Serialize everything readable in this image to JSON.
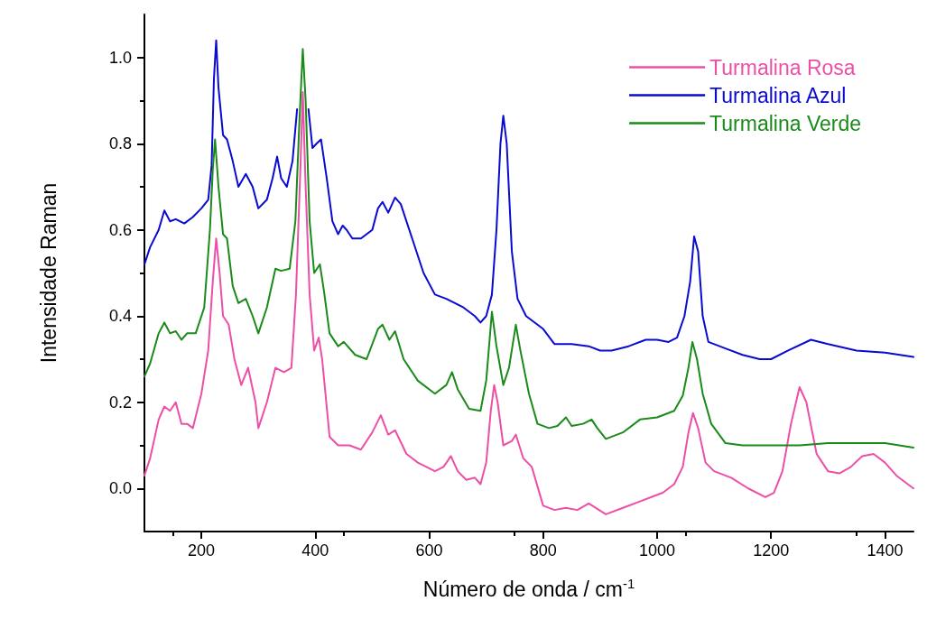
{
  "chart_data": {
    "type": "line",
    "xlabel": "Número de onda / cm$^{-1}$",
    "ylabel": "Intensidade Raman",
    "xlim": [
      100,
      1450
    ],
    "ylim": [
      -0.1,
      1.1
    ],
    "xticks": [
      200,
      400,
      600,
      800,
      1000,
      1200,
      1400
    ],
    "yticks": [
      {
        "value": 0,
        "label": "0.0"
      },
      {
        "value": 0.2,
        "label": "0.2"
      },
      {
        "value": 0.4,
        "label": "0.4"
      },
      {
        "value": 0.6,
        "label": "0.6"
      },
      {
        "value": 0.8,
        "label": "0.8"
      },
      {
        "value": 1,
        "label": "1.0"
      }
    ],
    "grid": false,
    "legend": "top right",
    "marker": "none",
    "line_style": "solid",
    "series": [
      {
        "name": "Turmalina Rosa",
        "color": "#ec4fa5",
        "x": [
          100,
          110,
          125,
          135,
          145,
          155,
          165,
          175,
          185,
          200,
          212,
          220,
          226,
          232,
          238,
          248,
          258,
          270,
          282,
          295,
          300,
          315,
          330,
          345,
          358,
          366,
          374,
          378,
          383,
          390,
          398,
          406,
          412,
          425,
          440,
          460,
          480,
          500,
          515,
          528,
          540,
          560,
          580,
          610,
          625,
          638,
          650,
          665,
          680,
          690,
          700,
          708,
          714,
          720,
          730,
          745,
          752,
          765,
          780,
          800,
          820,
          840,
          860,
          880,
          910,
          940,
          970,
          990,
          1010,
          1030,
          1045,
          1055,
          1063,
          1072,
          1085,
          1100,
          1130,
          1160,
          1190,
          1205,
          1220,
          1235,
          1250,
          1262,
          1280,
          1300,
          1320,
          1340,
          1360,
          1380,
          1400,
          1420,
          1450
        ],
        "values": [
          0.03,
          0.07,
          0.16,
          0.19,
          0.18,
          0.2,
          0.15,
          0.15,
          0.14,
          0.22,
          0.32,
          0.48,
          0.58,
          0.5,
          0.4,
          0.38,
          0.3,
          0.24,
          0.28,
          0.2,
          0.14,
          0.2,
          0.28,
          0.27,
          0.28,
          0.45,
          0.75,
          0.92,
          0.7,
          0.45,
          0.32,
          0.35,
          0.3,
          0.12,
          0.1,
          0.1,
          0.09,
          0.13,
          0.17,
          0.125,
          0.135,
          0.08,
          0.06,
          0.04,
          0.05,
          0.075,
          0.04,
          0.02,
          0.025,
          0.01,
          0.06,
          0.18,
          0.24,
          0.2,
          0.1,
          0.11,
          0.125,
          0.07,
          0.05,
          -0.04,
          -0.05,
          -0.045,
          -0.05,
          -0.035,
          -0.06,
          -0.045,
          -0.03,
          -0.02,
          -0.01,
          0.01,
          0.05,
          0.13,
          0.175,
          0.14,
          0.06,
          0.04,
          0.025,
          0,
          -0.02,
          -0.01,
          0.04,
          0.15,
          0.235,
          0.2,
          0.08,
          0.04,
          0.035,
          0.05,
          0.075,
          0.08,
          0.06,
          0.03,
          0
        ]
      },
      {
        "name": "Turmalina Azul",
        "color": "#0a0ad0",
        "x": [
          100,
          110,
          125,
          135,
          145,
          155,
          170,
          185,
          200,
          212,
          218,
          222,
          226,
          230,
          238,
          245,
          255,
          265,
          278,
          290,
          300,
          315,
          325,
          333,
          340,
          350,
          360,
          368,
          375,
          380,
          388,
          395,
          402,
          410,
          420,
          430,
          440,
          448,
          455,
          465,
          480,
          500,
          510,
          518,
          528,
          540,
          550,
          570,
          590,
          610,
          630,
          660,
          680,
          690,
          700,
          710,
          718,
          725,
          730,
          736,
          745,
          755,
          770,
          790,
          800,
          820,
          850,
          880,
          900,
          920,
          950,
          980,
          1000,
          1020,
          1035,
          1048,
          1058,
          1065,
          1072,
          1080,
          1090,
          1120,
          1150,
          1180,
          1200,
          1230,
          1270,
          1300,
          1350,
          1400,
          1450
        ],
        "values": [
          0.52,
          0.56,
          0.6,
          0.645,
          0.62,
          0.625,
          0.615,
          0.63,
          0.65,
          0.67,
          0.75,
          0.95,
          1.04,
          0.93,
          0.82,
          0.81,
          0.76,
          0.7,
          0.73,
          0.7,
          0.65,
          0.67,
          0.72,
          0.77,
          0.72,
          0.7,
          0.76,
          0.88,
          null,
          null,
          0.88,
          0.79,
          0.8,
          0.81,
          0.72,
          0.62,
          0.59,
          0.61,
          0.6,
          0.58,
          0.58,
          0.6,
          0.65,
          0.665,
          0.64,
          0.675,
          0.66,
          0.58,
          0.5,
          0.45,
          0.44,
          0.42,
          0.4,
          0.385,
          0.4,
          0.45,
          0.6,
          0.8,
          0.865,
          0.8,
          0.55,
          0.44,
          0.4,
          0.38,
          0.37,
          0.335,
          0.335,
          0.33,
          0.32,
          0.32,
          0.33,
          0.345,
          0.345,
          0.34,
          0.35,
          0.4,
          0.48,
          0.585,
          0.55,
          0.4,
          0.34,
          0.325,
          0.31,
          0.3,
          0.3,
          0.32,
          0.345,
          0.335,
          0.32,
          0.315,
          0.305
        ]
      },
      {
        "name": "Turmalina Verde",
        "color": "#1a8a1a",
        "x": [
          100,
          110,
          125,
          135,
          145,
          155,
          165,
          175,
          190,
          205,
          215,
          220,
          224,
          230,
          238,
          245,
          255,
          265,
          278,
          290,
          300,
          315,
          330,
          340,
          355,
          365,
          372,
          378,
          383,
          390,
          398,
          408,
          415,
          425,
          440,
          450,
          470,
          490,
          510,
          518,
          530,
          540,
          555,
          580,
          610,
          630,
          640,
          650,
          670,
          690,
          700,
          710,
          718,
          730,
          740,
          752,
          760,
          775,
          790,
          810,
          825,
          840,
          850,
          870,
          885,
          895,
          910,
          940,
          970,
          1000,
          1030,
          1045,
          1055,
          1062,
          1070,
          1080,
          1095,
          1120,
          1150,
          1200,
          1250,
          1300,
          1350,
          1400,
          1450
        ],
        "values": [
          0.26,
          0.29,
          0.36,
          0.385,
          0.36,
          0.365,
          0.345,
          0.36,
          0.36,
          0.42,
          0.6,
          0.74,
          0.81,
          0.7,
          0.59,
          0.58,
          0.47,
          0.43,
          0.44,
          0.4,
          0.36,
          0.42,
          0.51,
          0.505,
          0.51,
          0.62,
          0.85,
          1.02,
          0.9,
          0.62,
          0.5,
          0.52,
          0.46,
          0.36,
          0.33,
          0.34,
          0.31,
          0.3,
          0.37,
          0.38,
          0.345,
          0.365,
          0.3,
          0.25,
          0.22,
          0.24,
          0.27,
          0.23,
          0.185,
          0.18,
          0.25,
          0.41,
          0.33,
          0.24,
          0.28,
          0.38,
          0.32,
          0.22,
          0.15,
          0.14,
          0.145,
          0.165,
          0.145,
          0.15,
          0.16,
          0.14,
          0.115,
          0.13,
          0.16,
          0.165,
          0.18,
          0.215,
          0.28,
          0.34,
          0.3,
          0.22,
          0.15,
          0.105,
          0.1,
          0.1,
          0.1,
          0.105,
          0.105,
          0.105,
          0.095
        ]
      }
    ]
  }
}
